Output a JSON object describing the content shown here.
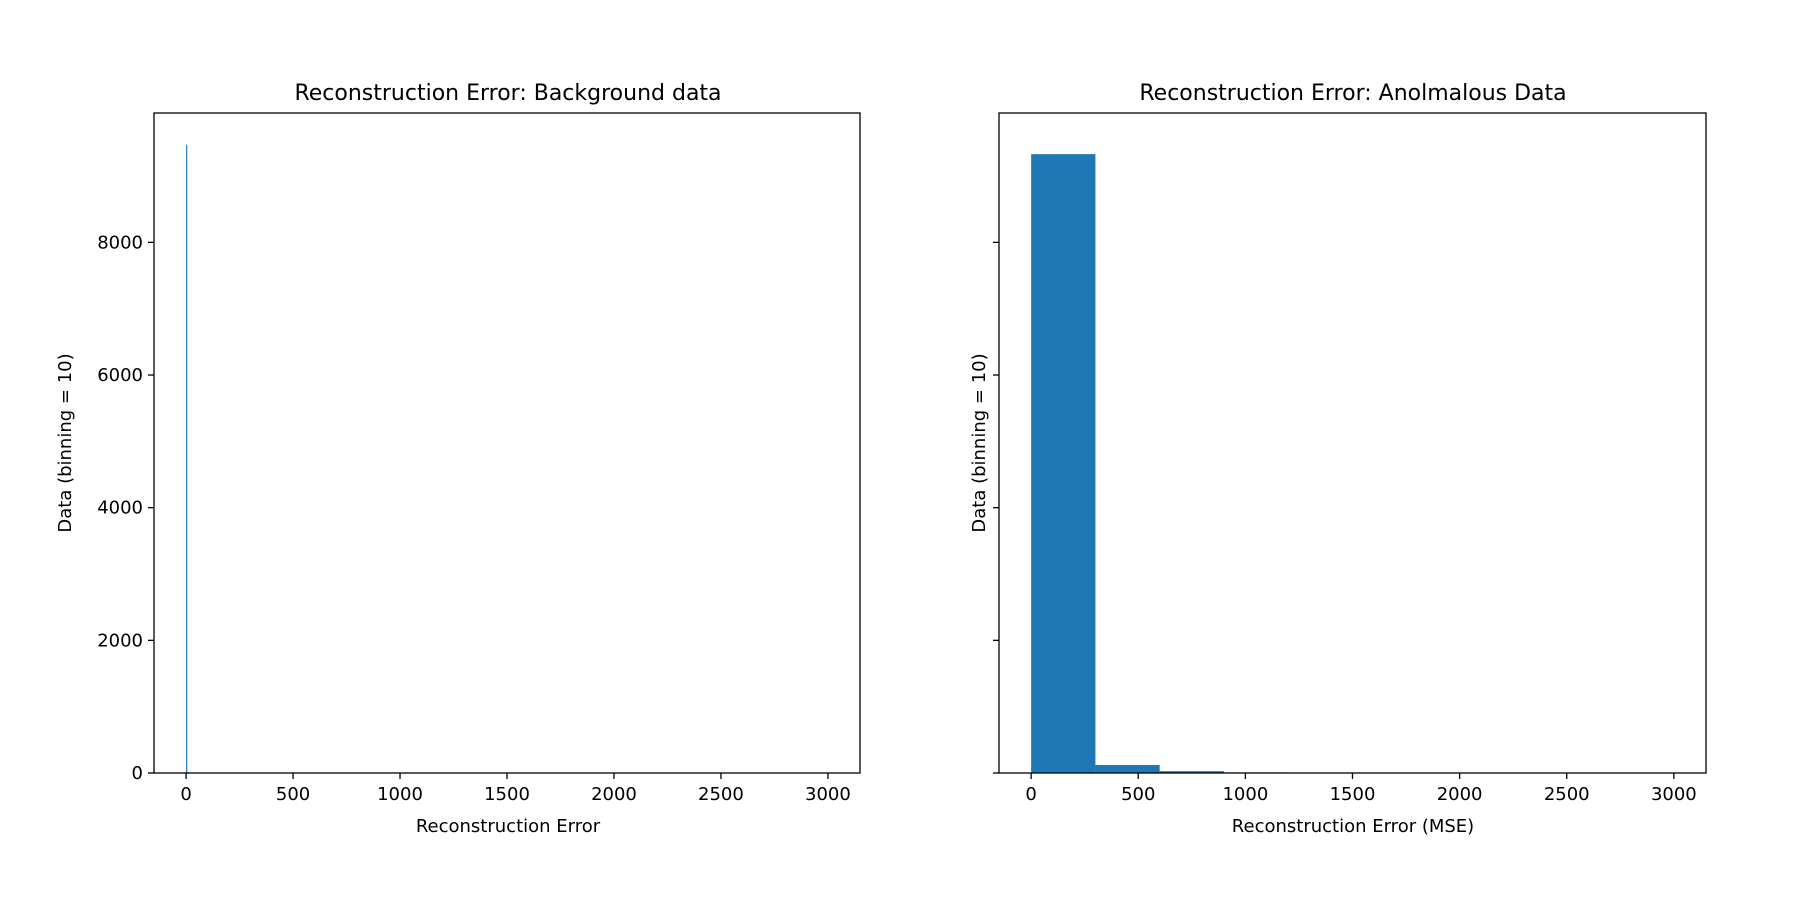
{
  "chart_data": [
    {
      "type": "bar",
      "title": "Reconstruction Error: Background data",
      "xlabel": "Reconstruction Error",
      "ylabel": "Data (binning = 10)",
      "xlim": [
        -150,
        3150
      ],
      "ylim": [
        0,
        9950
      ],
      "xticks": [
        0,
        500,
        1000,
        1500,
        2000,
        2500,
        3000
      ],
      "xtick_labels": [
        "0",
        "500",
        "1000",
        "1500",
        "2000",
        "2500",
        "3000"
      ],
      "yticks": [
        0,
        2000,
        4000,
        6000,
        8000
      ],
      "ytick_labels": [
        "0",
        "2000",
        "4000",
        "6000",
        "8000"
      ],
      "show_ytick_labels": true,
      "bins": [
        {
          "x0": 0,
          "x1": 5.5,
          "count": 9470
        },
        {
          "x0": 5.5,
          "x1": 11,
          "count": 15
        }
      ],
      "color": "#1f77b4",
      "grid": false,
      "legend": "none"
    },
    {
      "type": "bar",
      "title": "Reconstruction Error: Anolmalous Data",
      "xlabel": "Reconstruction Error (MSE)",
      "ylabel": "Data (binning = 10)",
      "xlim": [
        -150,
        3150
      ],
      "ylim": [
        0,
        9950
      ],
      "xticks": [
        0,
        500,
        1000,
        1500,
        2000,
        2500,
        3000
      ],
      "xtick_labels": [
        "0",
        "500",
        "1000",
        "1500",
        "2000",
        "2500",
        "3000"
      ],
      "yticks": [
        0,
        2000,
        4000,
        6000,
        8000
      ],
      "ytick_labels": [],
      "show_ytick_labels": false,
      "bins": [
        {
          "x0": 0,
          "x1": 300,
          "count": 9330
        },
        {
          "x0": 300,
          "x1": 600,
          "count": 120
        },
        {
          "x0": 600,
          "x1": 900,
          "count": 28
        },
        {
          "x0": 900,
          "x1": 1200,
          "count": 8
        },
        {
          "x0": 1200,
          "x1": 1500,
          "count": 4
        },
        {
          "x0": 1500,
          "x1": 1800,
          "count": 2
        },
        {
          "x0": 1800,
          "x1": 2100,
          "count": 1
        },
        {
          "x0": 2100,
          "x1": 2400,
          "count": 1
        },
        {
          "x0": 2400,
          "x1": 2700,
          "count": 0
        },
        {
          "x0": 2700,
          "x1": 3000,
          "count": 1
        }
      ],
      "color": "#1f77b4",
      "grid": false,
      "legend": "none"
    }
  ]
}
